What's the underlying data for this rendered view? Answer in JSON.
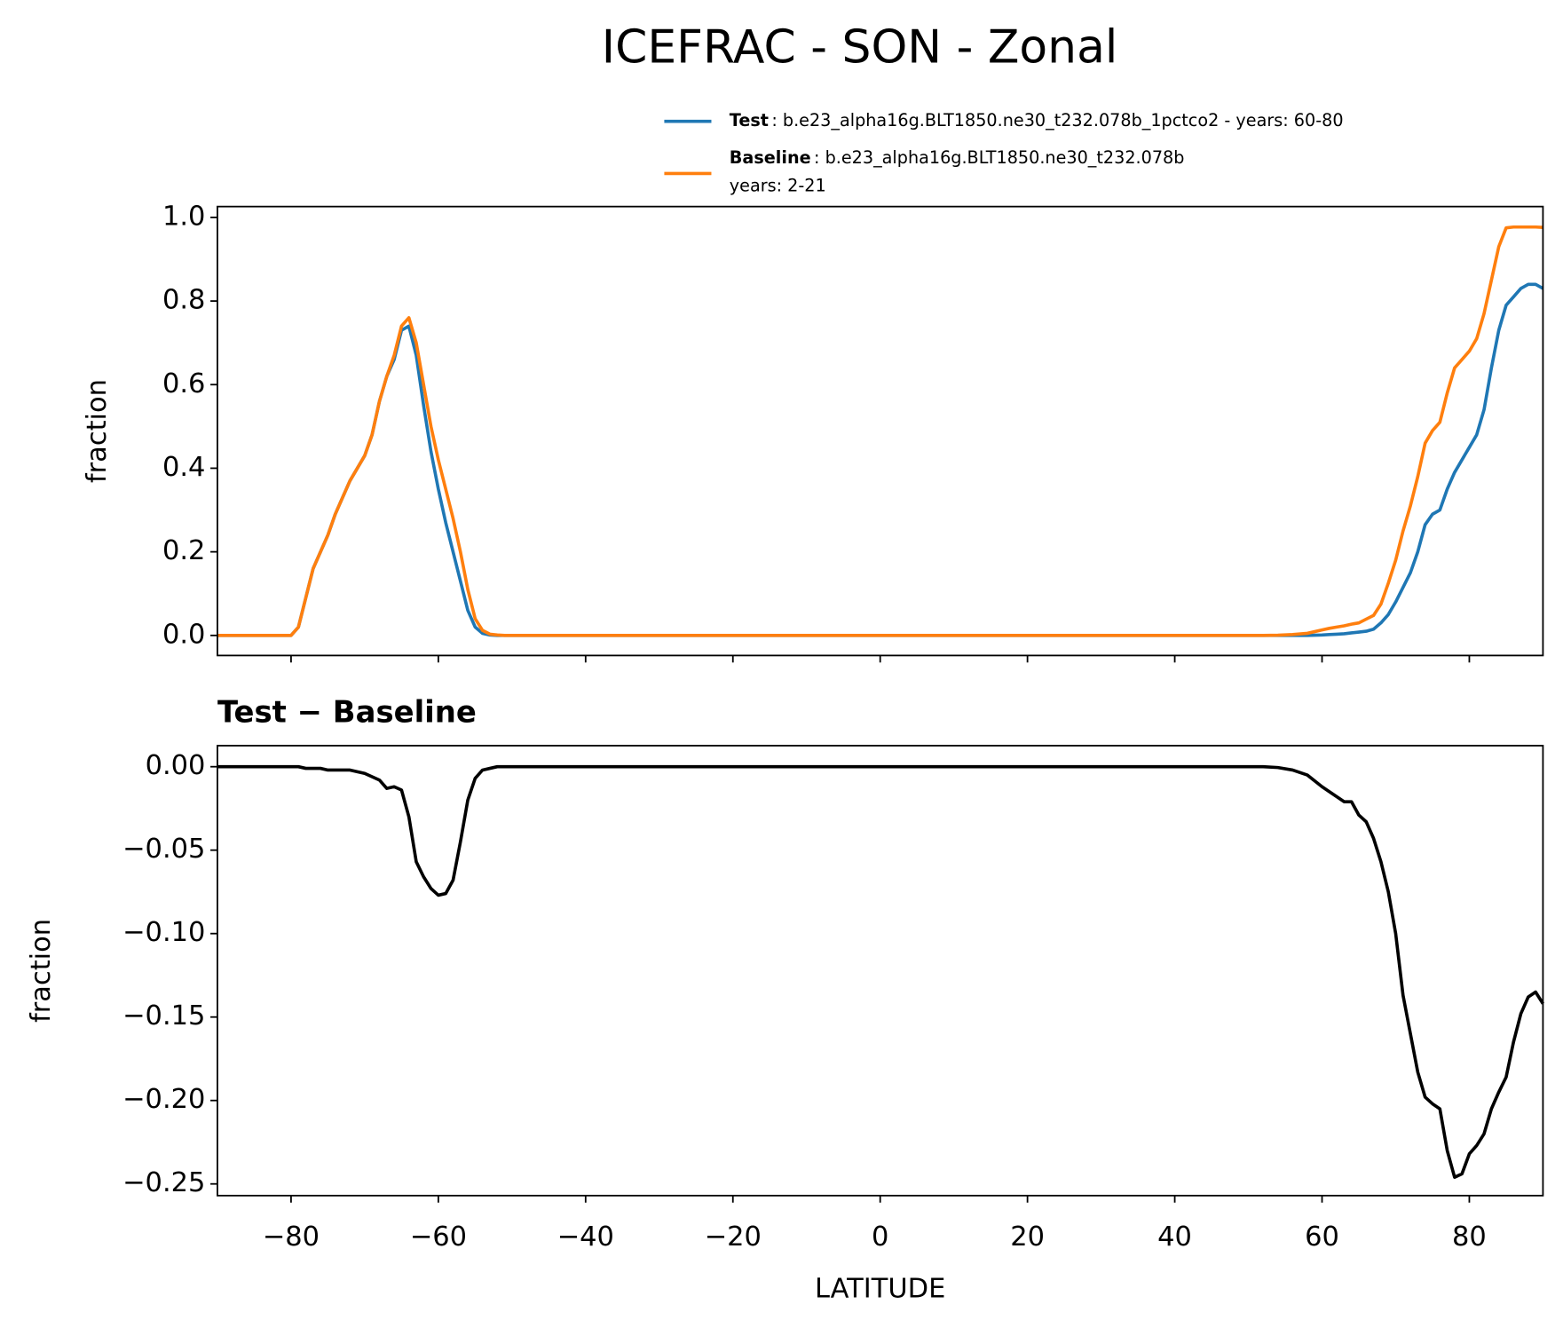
{
  "chart_data": [
    {
      "type": "line",
      "title": "ICEFRAC - SON - Zonal",
      "ylabel": "fraction",
      "x": [
        -90,
        -85,
        -80,
        -79,
        -78,
        -77,
        -76,
        -75,
        -74,
        -73,
        -72,
        -71,
        -70,
        -69,
        -68,
        -67,
        -66,
        -65,
        -64,
        -63,
        -62,
        -61,
        -60,
        -59,
        -58,
        -57,
        -56,
        -55,
        -54,
        -53,
        -52,
        -51,
        -50,
        -40,
        -30,
        -20,
        -10,
        0,
        10,
        20,
        30,
        40,
        50,
        52,
        54,
        56,
        58,
        60,
        61,
        62,
        63,
        64,
        65,
        66,
        67,
        68,
        69,
        70,
        71,
        72,
        73,
        74,
        75,
        76,
        77,
        78,
        79,
        80,
        81,
        82,
        83,
        84,
        85,
        86,
        87,
        88,
        89,
        90
      ],
      "series": [
        {
          "name": "Test",
          "label": ": b.e23_alpha16g.BLT1850.ne30_t232.078b_1pctco2 - years: 60-80",
          "color": "#1f77b4",
          "values": [
            0,
            0,
            0,
            0.02,
            0.09,
            0.16,
            0.2,
            0.24,
            0.29,
            0.33,
            0.37,
            0.4,
            0.43,
            0.48,
            0.56,
            0.62,
            0.66,
            0.73,
            0.74,
            0.67,
            0.55,
            0.44,
            0.35,
            0.27,
            0.2,
            0.13,
            0.06,
            0.02,
            0.005,
            0.001,
            0,
            0,
            0,
            0,
            0,
            0,
            0,
            0,
            0,
            0,
            0,
            0,
            0,
            0,
            0,
            0,
            0,
            0.001,
            0.002,
            0.003,
            0.004,
            0.006,
            0.008,
            0.01,
            0.015,
            0.03,
            0.05,
            0.08,
            0.115,
            0.15,
            0.2,
            0.265,
            0.29,
            0.3,
            0.35,
            0.39,
            0.42,
            0.45,
            0.48,
            0.54,
            0.64,
            0.73,
            0.79,
            0.81,
            0.83,
            0.84,
            0.84,
            0.83
          ]
        },
        {
          "name": "Baseline",
          "label": [
            ": b.e23_alpha16g.BLT1850.ne30_t232.078b",
            "years: 2-21"
          ],
          "color": "#ff7f0e",
          "values": [
            0,
            0,
            0,
            0.02,
            0.09,
            0.16,
            0.2,
            0.24,
            0.29,
            0.33,
            0.37,
            0.4,
            0.43,
            0.48,
            0.56,
            0.62,
            0.67,
            0.74,
            0.76,
            0.7,
            0.6,
            0.5,
            0.42,
            0.35,
            0.28,
            0.2,
            0.11,
            0.04,
            0.012,
            0.003,
            0.001,
            0,
            0,
            0,
            0,
            0,
            0,
            0,
            0,
            0,
            0,
            0,
            0,
            0,
            0.0005,
            0.002,
            0.005,
            0.013,
            0.017,
            0.02,
            0.023,
            0.027,
            0.03,
            0.039,
            0.048,
            0.075,
            0.125,
            0.18,
            0.25,
            0.31,
            0.38,
            0.46,
            0.49,
            0.51,
            0.58,
            0.64,
            0.66,
            0.68,
            0.71,
            0.77,
            0.85,
            0.93,
            0.975,
            0.977,
            0.977,
            0.977,
            0.977,
            0.976
          ]
        }
      ],
      "xlim": [
        -90,
        90
      ],
      "xticks": [
        -80,
        -60,
        -40,
        -20,
        0,
        20,
        40,
        60,
        80
      ],
      "ylim": [
        -0.048,
        1.026
      ],
      "yticks": [
        {
          "value": 0,
          "label": "0.0"
        },
        0.2,
        0.4,
        0.6,
        0.8,
        {
          "value": 1,
          "label": "1.0"
        }
      ]
    },
    {
      "type": "line",
      "title": "Test − Baseline",
      "ylabel": "fraction",
      "xlabel": "LATITUDE",
      "x": [
        -90,
        -85,
        -80,
        -79,
        -78,
        -77,
        -76,
        -75,
        -74,
        -73,
        -72,
        -71,
        -70,
        -69,
        -68,
        -67,
        -66,
        -65,
        -64,
        -63,
        -62,
        -61,
        -60,
        -59,
        -58,
        -57,
        -56,
        -55,
        -54,
        -53,
        -52,
        -51,
        -50,
        -40,
        -30,
        -20,
        -10,
        0,
        10,
        20,
        30,
        40,
        50,
        52,
        54,
        56,
        58,
        60,
        61,
        62,
        63,
        64,
        65,
        66,
        67,
        68,
        69,
        70,
        71,
        72,
        73,
        74,
        75,
        76,
        77,
        78,
        79,
        80,
        81,
        82,
        83,
        84,
        85,
        86,
        87,
        88,
        89,
        90
      ],
      "series": [
        {
          "color": "#000000",
          "values": [
            0,
            0,
            0,
            0,
            -0.001,
            -0.001,
            -0.001,
            -0.002,
            -0.002,
            -0.002,
            -0.002,
            -0.003,
            -0.004,
            -0.006,
            -0.008,
            -0.013,
            -0.012,
            -0.014,
            -0.03,
            -0.057,
            -0.066,
            -0.073,
            -0.077,
            -0.076,
            -0.068,
            -0.045,
            -0.02,
            -0.007,
            -0.002,
            -0.001,
            0,
            0,
            0,
            0,
            0,
            0,
            0,
            0,
            0,
            0,
            0,
            0,
            0,
            0,
            -0.0005,
            -0.002,
            -0.005,
            -0.012,
            -0.015,
            -0.018,
            -0.021,
            -0.021,
            -0.029,
            -0.033,
            -0.043,
            -0.057,
            -0.075,
            -0.1,
            -0.137,
            -0.16,
            -0.183,
            -0.198,
            -0.202,
            -0.205,
            -0.23,
            -0.246,
            -0.244,
            -0.232,
            -0.227,
            -0.22,
            -0.205,
            -0.195,
            -0.186,
            -0.165,
            -0.148,
            -0.138,
            -0.135,
            -0.142
          ]
        }
      ],
      "xlim": [
        -90,
        90
      ],
      "xticks": [
        {
          "value": -80,
          "label": "−80"
        },
        {
          "value": -60,
          "label": "−60"
        },
        {
          "value": -40,
          "label": "−40"
        },
        {
          "value": -20,
          "label": "−20"
        },
        0,
        20,
        40,
        60,
        80
      ],
      "ylim": [
        -0.257,
        0.0126
      ],
      "yticks": [
        {
          "value": 0,
          "label": "0.00"
        },
        {
          "value": -0.05,
          "label": "−0.05"
        },
        {
          "value": -0.1,
          "label": "−0.10"
        },
        {
          "value": -0.15,
          "label": "−0.15"
        },
        {
          "value": -0.2,
          "label": "−0.20"
        },
        {
          "value": -0.25,
          "label": "−0.25"
        }
      ]
    }
  ]
}
